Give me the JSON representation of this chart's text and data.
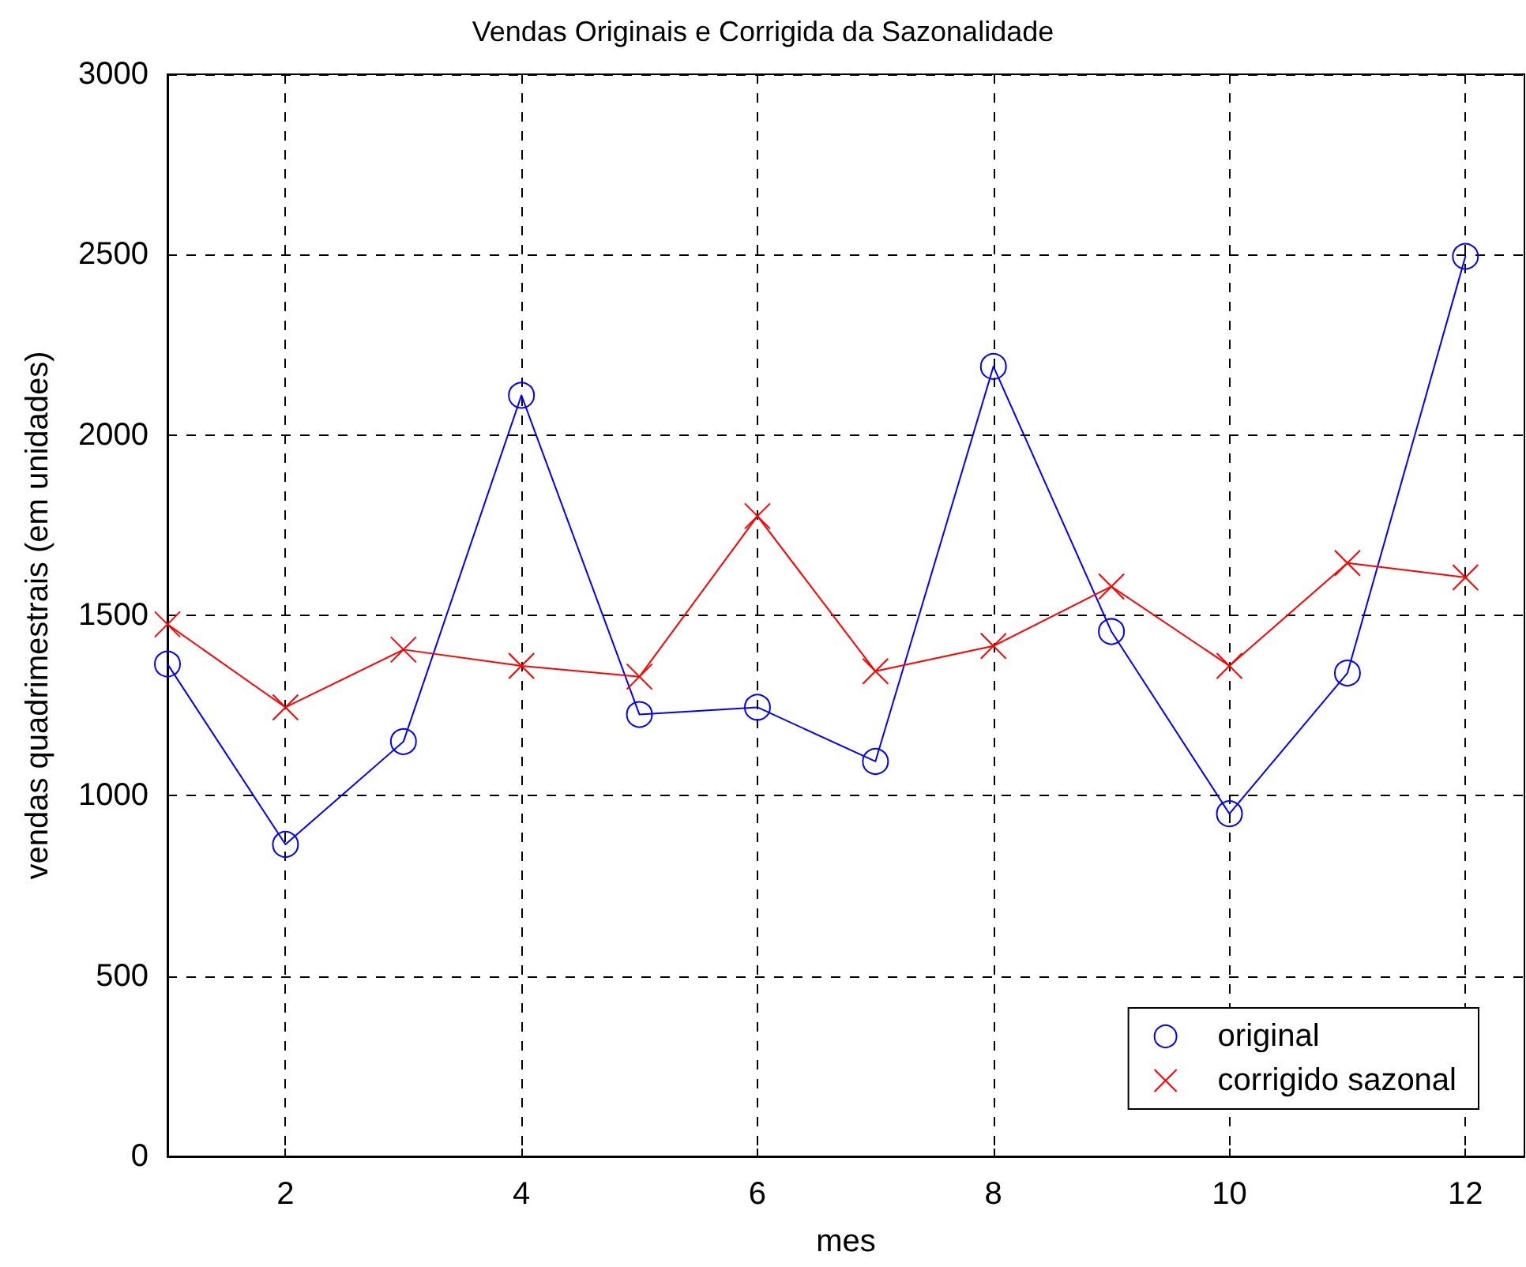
{
  "chart_data": {
    "type": "line",
    "title": "Vendas Originais e Corrigida da Sazonalidade",
    "xlabel": "mes",
    "ylabel": "vendas quadrimestrais (em unidades)",
    "x": [
      1,
      2,
      3,
      4,
      5,
      6,
      7,
      8,
      9,
      10,
      11,
      12
    ],
    "series": [
      {
        "name": "original",
        "color": "#0000ff",
        "marker": "circle",
        "values": [
          1365,
          865,
          1150,
          2110,
          1225,
          1245,
          1095,
          2190,
          1455,
          950,
          1340,
          2495
        ]
      },
      {
        "name": "corrigido sazonal",
        "color": "#ff0000",
        "marker": "cross",
        "values": [
          1475,
          1245,
          1405,
          1360,
          1330,
          1775,
          1345,
          1415,
          1580,
          1360,
          1645,
          1605
        ]
      }
    ],
    "xlim": [
      1,
      12.5
    ],
    "xticks": [
      2,
      4,
      6,
      8,
      10,
      12
    ],
    "ylim": [
      0,
      3000
    ],
    "yticks": [
      0,
      500,
      1000,
      1500,
      2000,
      2500,
      3000
    ],
    "grid": true,
    "legend": "bottom right",
    "line_style": "solid"
  }
}
